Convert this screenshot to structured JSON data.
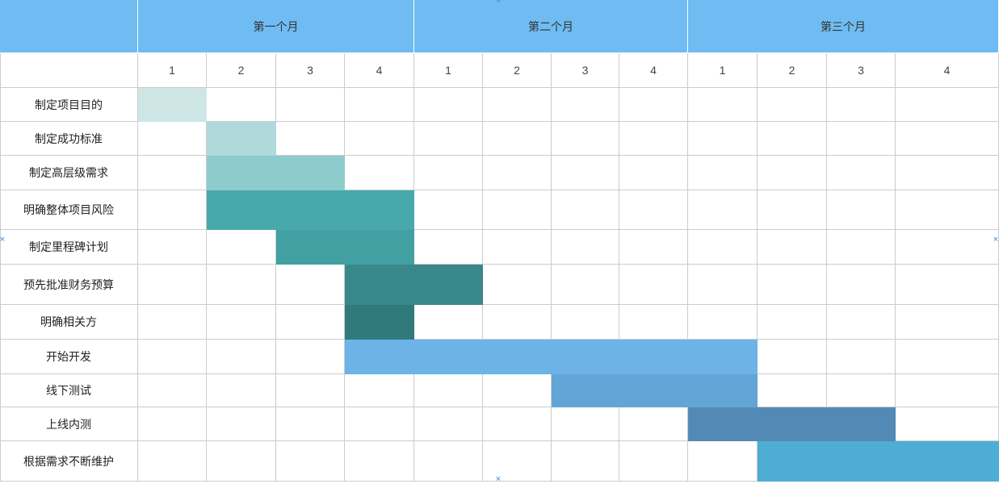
{
  "chart_data": {
    "type": "gantt",
    "months": [
      "第一个月",
      "第二个月",
      "第三个月"
    ],
    "weeks_per_month": 4,
    "week_labels": [
      "1",
      "2",
      "3",
      "4",
      "1",
      "2",
      "3",
      "4",
      "1",
      "2",
      "3",
      "4"
    ],
    "tasks": [
      {
        "name": "制定项目目的",
        "start_week": 1,
        "end_week": 1,
        "color": "#cfe6e6"
      },
      {
        "name": "制定成功标准",
        "start_week": 2,
        "end_week": 2,
        "color": "#b0d9dc"
      },
      {
        "name": "制定高层级需求",
        "start_week": 2,
        "end_week": 3,
        "color": "#8ecbcc"
      },
      {
        "name": "明确整体项目风险",
        "start_week": 2,
        "end_week": 4,
        "color": "#48a9ad"
      },
      {
        "name": "制定里程碑计划",
        "start_week": 3,
        "end_week": 4,
        "color": "#43a0a2"
      },
      {
        "name": "预先批准财务预算",
        "start_week": 4,
        "end_week": 5,
        "color": "#39888a"
      },
      {
        "name": "明确相关方",
        "start_week": 4,
        "end_week": 4,
        "color": "#317a7b"
      },
      {
        "name": "开始开发",
        "start_week": 4,
        "end_week": 9,
        "color": "#6db3e8"
      },
      {
        "name": "线下测试",
        "start_week": 7,
        "end_week": 9,
        "color": "#62a5d6"
      },
      {
        "name": "上线内测",
        "start_week": 9,
        "end_week": 11,
        "color": "#538ab5"
      },
      {
        "name": "根据需求不断维护",
        "start_week": 10,
        "end_week": 12,
        "color": "#4eadd4"
      }
    ]
  }
}
